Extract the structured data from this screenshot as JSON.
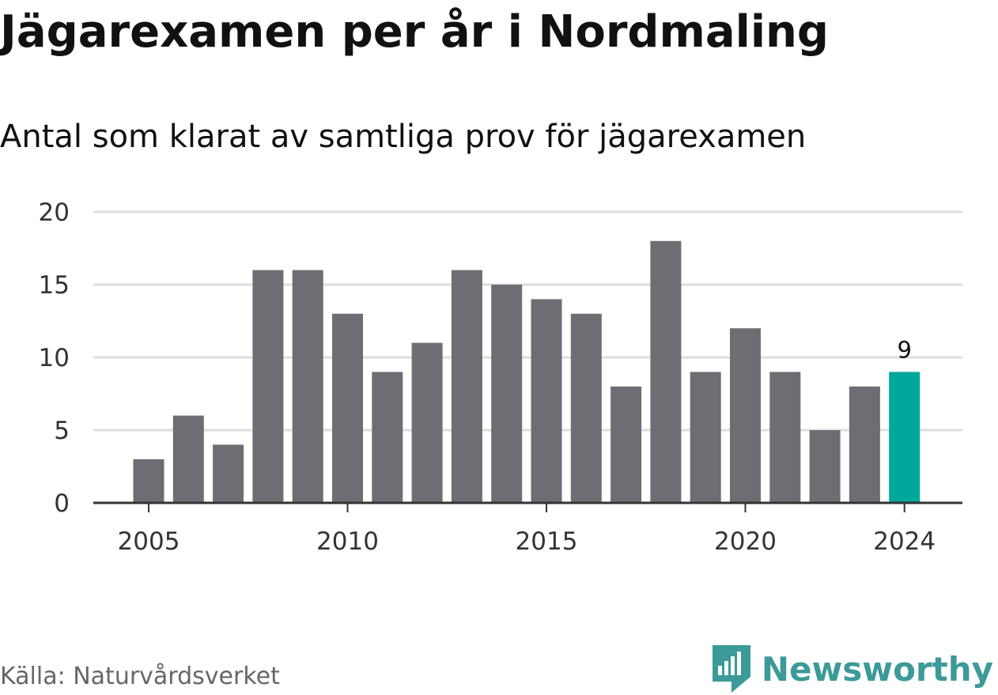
{
  "title": "Jägarexamen per år i Nordmaling",
  "subtitle": "Antal som klarat av samtliga prov för jägarexamen",
  "source": "Källa: Naturvårdsverket",
  "brand": {
    "name": "Newsworthy",
    "icon": "newsworthy-logo-icon",
    "color": "#3c9a98"
  },
  "colors": {
    "bar": "#6e6d74",
    "highlight": "#00a79b",
    "grid": "#dddddd",
    "axis": "#333333"
  },
  "chart_data": {
    "type": "bar",
    "title": "Jägarexamen per år i Nordmaling",
    "subtitle": "Antal som klarat av samtliga prov för jägarexamen",
    "xlabel": "",
    "ylabel": "",
    "categories": [
      2005,
      2006,
      2007,
      2008,
      2009,
      2010,
      2011,
      2012,
      2013,
      2014,
      2015,
      2016,
      2017,
      2018,
      2019,
      2020,
      2021,
      2022,
      2023,
      2024
    ],
    "values": [
      3,
      6,
      4,
      16,
      16,
      13,
      9,
      11,
      16,
      15,
      14,
      13,
      8,
      18,
      9,
      12,
      9,
      5,
      8,
      9
    ],
    "ylim": [
      0,
      20
    ],
    "yticks": [
      0,
      5,
      10,
      15,
      20
    ],
    "xticks": [
      2005,
      2010,
      2015,
      2020,
      2024
    ],
    "highlight": {
      "category": 2024,
      "label": "9"
    },
    "grid": true,
    "legend": "none"
  }
}
